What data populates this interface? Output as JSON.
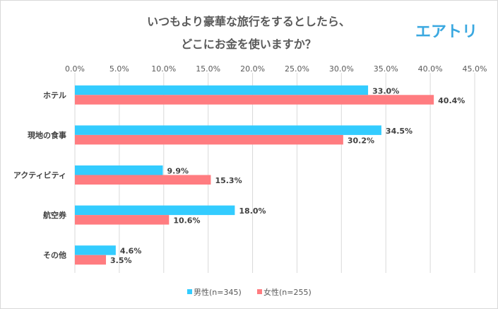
{
  "logo_text": "エアトリ",
  "chart_data": {
    "type": "bar",
    "orientation": "horizontal",
    "title": [
      "いつもより豪華な旅行をするとしたら、",
      "どこにお金を使いますか？"
    ],
    "categories": [
      "ホテル",
      "現地の食事",
      "アクティビティ",
      "航空券",
      "その他"
    ],
    "series": [
      {
        "name": "男性(n=345)",
        "color": "#33CCFF",
        "values": [
          33.0,
          34.5,
          9.9,
          18.0,
          4.6
        ]
      },
      {
        "name": "女性(n=255)",
        "color": "#FF7C80",
        "values": [
          40.4,
          30.2,
          15.3,
          10.6,
          3.5
        ]
      }
    ],
    "xlim": [
      0,
      45
    ],
    "xticks": [
      "0.0%",
      "5.0%",
      "10.0%",
      "15.0%",
      "20.0%",
      "25.0%",
      "30.0%",
      "35.0%",
      "40.0%",
      "45.0%"
    ],
    "xaxis_position": "top",
    "grid": true,
    "legend": "bottom",
    "data_labels": true
  }
}
